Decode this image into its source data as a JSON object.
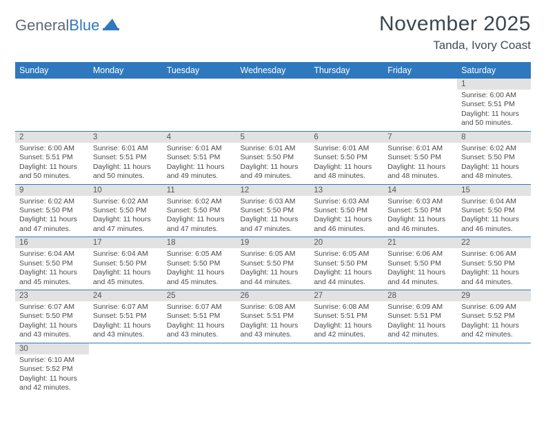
{
  "brand": {
    "general": "General",
    "blue": "Blue"
  },
  "title": "November 2025",
  "location": "Tanda, Ivory Coast",
  "colors": {
    "header_bg": "#2f78bd",
    "daynum_bg": "#e2e2e2",
    "rule": "#2f78bd"
  },
  "daysOfWeek": [
    "Sunday",
    "Monday",
    "Tuesday",
    "Wednesday",
    "Thursday",
    "Friday",
    "Saturday"
  ],
  "weeks": [
    [
      null,
      null,
      null,
      null,
      null,
      null,
      {
        "n": "1",
        "sr": "Sunrise: 6:00 AM",
        "ss": "Sunset: 5:51 PM",
        "d1": "Daylight: 11 hours",
        "d2": "and 50 minutes."
      }
    ],
    [
      {
        "n": "2",
        "sr": "Sunrise: 6:00 AM",
        "ss": "Sunset: 5:51 PM",
        "d1": "Daylight: 11 hours",
        "d2": "and 50 minutes."
      },
      {
        "n": "3",
        "sr": "Sunrise: 6:01 AM",
        "ss": "Sunset: 5:51 PM",
        "d1": "Daylight: 11 hours",
        "d2": "and 50 minutes."
      },
      {
        "n": "4",
        "sr": "Sunrise: 6:01 AM",
        "ss": "Sunset: 5:51 PM",
        "d1": "Daylight: 11 hours",
        "d2": "and 49 minutes."
      },
      {
        "n": "5",
        "sr": "Sunrise: 6:01 AM",
        "ss": "Sunset: 5:50 PM",
        "d1": "Daylight: 11 hours",
        "d2": "and 49 minutes."
      },
      {
        "n": "6",
        "sr": "Sunrise: 6:01 AM",
        "ss": "Sunset: 5:50 PM",
        "d1": "Daylight: 11 hours",
        "d2": "and 48 minutes."
      },
      {
        "n": "7",
        "sr": "Sunrise: 6:01 AM",
        "ss": "Sunset: 5:50 PM",
        "d1": "Daylight: 11 hours",
        "d2": "and 48 minutes."
      },
      {
        "n": "8",
        "sr": "Sunrise: 6:02 AM",
        "ss": "Sunset: 5:50 PM",
        "d1": "Daylight: 11 hours",
        "d2": "and 48 minutes."
      }
    ],
    [
      {
        "n": "9",
        "sr": "Sunrise: 6:02 AM",
        "ss": "Sunset: 5:50 PM",
        "d1": "Daylight: 11 hours",
        "d2": "and 47 minutes."
      },
      {
        "n": "10",
        "sr": "Sunrise: 6:02 AM",
        "ss": "Sunset: 5:50 PM",
        "d1": "Daylight: 11 hours",
        "d2": "and 47 minutes."
      },
      {
        "n": "11",
        "sr": "Sunrise: 6:02 AM",
        "ss": "Sunset: 5:50 PM",
        "d1": "Daylight: 11 hours",
        "d2": "and 47 minutes."
      },
      {
        "n": "12",
        "sr": "Sunrise: 6:03 AM",
        "ss": "Sunset: 5:50 PM",
        "d1": "Daylight: 11 hours",
        "d2": "and 47 minutes."
      },
      {
        "n": "13",
        "sr": "Sunrise: 6:03 AM",
        "ss": "Sunset: 5:50 PM",
        "d1": "Daylight: 11 hours",
        "d2": "and 46 minutes."
      },
      {
        "n": "14",
        "sr": "Sunrise: 6:03 AM",
        "ss": "Sunset: 5:50 PM",
        "d1": "Daylight: 11 hours",
        "d2": "and 46 minutes."
      },
      {
        "n": "15",
        "sr": "Sunrise: 6:04 AM",
        "ss": "Sunset: 5:50 PM",
        "d1": "Daylight: 11 hours",
        "d2": "and 46 minutes."
      }
    ],
    [
      {
        "n": "16",
        "sr": "Sunrise: 6:04 AM",
        "ss": "Sunset: 5:50 PM",
        "d1": "Daylight: 11 hours",
        "d2": "and 45 minutes."
      },
      {
        "n": "17",
        "sr": "Sunrise: 6:04 AM",
        "ss": "Sunset: 5:50 PM",
        "d1": "Daylight: 11 hours",
        "d2": "and 45 minutes."
      },
      {
        "n": "18",
        "sr": "Sunrise: 6:05 AM",
        "ss": "Sunset: 5:50 PM",
        "d1": "Daylight: 11 hours",
        "d2": "and 45 minutes."
      },
      {
        "n": "19",
        "sr": "Sunrise: 6:05 AM",
        "ss": "Sunset: 5:50 PM",
        "d1": "Daylight: 11 hours",
        "d2": "and 44 minutes."
      },
      {
        "n": "20",
        "sr": "Sunrise: 6:05 AM",
        "ss": "Sunset: 5:50 PM",
        "d1": "Daylight: 11 hours",
        "d2": "and 44 minutes."
      },
      {
        "n": "21",
        "sr": "Sunrise: 6:06 AM",
        "ss": "Sunset: 5:50 PM",
        "d1": "Daylight: 11 hours",
        "d2": "and 44 minutes."
      },
      {
        "n": "22",
        "sr": "Sunrise: 6:06 AM",
        "ss": "Sunset: 5:50 PM",
        "d1": "Daylight: 11 hours",
        "d2": "and 44 minutes."
      }
    ],
    [
      {
        "n": "23",
        "sr": "Sunrise: 6:07 AM",
        "ss": "Sunset: 5:50 PM",
        "d1": "Daylight: 11 hours",
        "d2": "and 43 minutes."
      },
      {
        "n": "24",
        "sr": "Sunrise: 6:07 AM",
        "ss": "Sunset: 5:51 PM",
        "d1": "Daylight: 11 hours",
        "d2": "and 43 minutes."
      },
      {
        "n": "25",
        "sr": "Sunrise: 6:07 AM",
        "ss": "Sunset: 5:51 PM",
        "d1": "Daylight: 11 hours",
        "d2": "and 43 minutes."
      },
      {
        "n": "26",
        "sr": "Sunrise: 6:08 AM",
        "ss": "Sunset: 5:51 PM",
        "d1": "Daylight: 11 hours",
        "d2": "and 43 minutes."
      },
      {
        "n": "27",
        "sr": "Sunrise: 6:08 AM",
        "ss": "Sunset: 5:51 PM",
        "d1": "Daylight: 11 hours",
        "d2": "and 42 minutes."
      },
      {
        "n": "28",
        "sr": "Sunrise: 6:09 AM",
        "ss": "Sunset: 5:51 PM",
        "d1": "Daylight: 11 hours",
        "d2": "and 42 minutes."
      },
      {
        "n": "29",
        "sr": "Sunrise: 6:09 AM",
        "ss": "Sunset: 5:52 PM",
        "d1": "Daylight: 11 hours",
        "d2": "and 42 minutes."
      }
    ],
    [
      {
        "n": "30",
        "sr": "Sunrise: 6:10 AM",
        "ss": "Sunset: 5:52 PM",
        "d1": "Daylight: 11 hours",
        "d2": "and 42 minutes."
      },
      null,
      null,
      null,
      null,
      null,
      null
    ]
  ]
}
